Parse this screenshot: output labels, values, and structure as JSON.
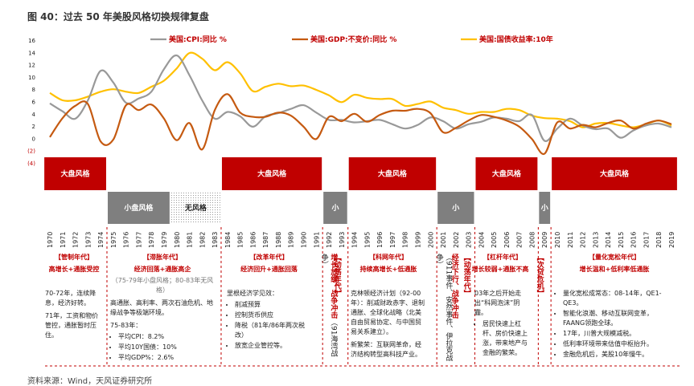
{
  "title": "图 40：过去 50 年美股风格切换规律复盘",
  "source": "资料来源：Wind，天风证券研究所",
  "colors": {
    "cpi": "#999999",
    "gdp": "#c55a11",
    "yield": "#ffc000",
    "red": "#c00000",
    "gray": "#7f7f7f"
  },
  "chart_data": {
    "type": "line",
    "title": "图 40：过去 50 年美股风格切换规律复盘",
    "x": [
      1970,
      1971,
      1972,
      1973,
      1974,
      1975,
      1976,
      1977,
      1978,
      1979,
      1980,
      1981,
      1982,
      1983,
      1984,
      1985,
      1986,
      1987,
      1988,
      1989,
      1990,
      1991,
      1992,
      1993,
      1994,
      1995,
      1996,
      1997,
      1998,
      1999,
      2000,
      2001,
      2002,
      2003,
      2004,
      2005,
      2006,
      2007,
      2008,
      2009,
      2010,
      2011,
      2012,
      2013,
      2014,
      2015,
      2016,
      2017,
      2018,
      2019
    ],
    "ylim": [
      -4,
      16
    ],
    "yticks": [
      "16",
      "14",
      "12",
      "10",
      "8",
      "6",
      "4",
      "2",
      "0",
      "(2)",
      "(4)"
    ],
    "legend": [
      "美国:CPI:同比 %",
      "美国:GDP:不变价:同比 %",
      "美国:国债收益率:10年"
    ],
    "series": [
      {
        "name": "美国:CPI:同比 %",
        "values": [
          5.7,
          4.4,
          3.2,
          6.2,
          11.0,
          9.1,
          5.8,
          6.5,
          7.6,
          11.3,
          13.5,
          10.3,
          6.2,
          3.2,
          4.3,
          3.6,
          1.9,
          3.6,
          4.1,
          4.8,
          5.4,
          4.2,
          3.0,
          3.0,
          2.6,
          2.8,
          3.0,
          2.3,
          1.6,
          2.2,
          3.4,
          2.8,
          1.6,
          2.3,
          2.7,
          3.4,
          3.2,
          2.8,
          3.8,
          -0.4,
          1.6,
          3.2,
          2.1,
          1.5,
          1.6,
          0.1,
          1.3,
          2.1,
          2.4,
          1.8
        ]
      },
      {
        "name": "美国:GDP:不变价:同比 %",
        "values": [
          0.2,
          3.3,
          5.3,
          5.6,
          -0.5,
          -0.2,
          5.4,
          4.6,
          5.5,
          3.2,
          -0.3,
          2.5,
          -1.8,
          4.6,
          7.2,
          4.2,
          3.5,
          3.5,
          4.2,
          3.7,
          1.9,
          -0.1,
          3.5,
          2.8,
          4.0,
          2.7,
          3.8,
          4.5,
          4.5,
          4.8,
          4.1,
          1.0,
          1.7,
          2.9,
          3.8,
          3.5,
          2.9,
          1.9,
          -0.1,
          -2.5,
          2.6,
          1.6,
          2.2,
          1.8,
          2.5,
          2.9,
          1.6,
          2.4,
          2.9,
          2.3
        ]
      },
      {
        "name": "美国:国债收益率:10年",
        "values": [
          7.4,
          6.2,
          6.2,
          6.8,
          7.6,
          8.0,
          7.6,
          7.4,
          8.4,
          9.4,
          11.4,
          13.9,
          13.0,
          11.1,
          12.4,
          10.6,
          7.7,
          8.4,
          8.9,
          8.5,
          8.6,
          7.9,
          7.0,
          5.9,
          7.1,
          6.6,
          6.4,
          6.4,
          5.3,
          5.6,
          6.0,
          5.0,
          4.6,
          4.0,
          4.3,
          4.3,
          4.8,
          4.6,
          3.7,
          3.3,
          3.2,
          2.8,
          1.8,
          2.4,
          2.5,
          2.1,
          1.8,
          2.3,
          2.9,
          2.1
        ]
      }
    ],
    "bands": [
      {
        "label": "大盘风格",
        "from": 1970,
        "to": 1974,
        "kind": "big"
      },
      {
        "label": "小盘风格",
        "from": 1975,
        "to": 1979,
        "kind": "small"
      },
      {
        "label": "无风格",
        "from": 1980,
        "to": 1983,
        "kind": "none"
      },
      {
        "label": "大盘风格",
        "from": 1984,
        "to": 1991,
        "kind": "big"
      },
      {
        "label": "小",
        "from": 1992,
        "to": 1993,
        "kind": "small"
      },
      {
        "label": "大盘风格",
        "from": 1994,
        "to": 2000,
        "kind": "big"
      },
      {
        "label": "小",
        "from": 2001,
        "to": 2003,
        "kind": "small"
      },
      {
        "label": "大盘风格",
        "from": 2004,
        "to": 2008,
        "kind": "big"
      },
      {
        "label": "小",
        "from": 2009,
        "to": 2009,
        "kind": "small"
      },
      {
        "label": "大盘风格",
        "from": 2010,
        "to": 2019,
        "kind": "big"
      }
    ]
  },
  "columns": {
    "c1": {
      "title": "【管制年代】",
      "sub": "高增长+通胀受控",
      "p1": "70-72年，连续降息，经济好转。",
      "p2": "71年，工资和物价管控，通胀暂时压住。"
    },
    "c2": {
      "title": "【滞胀年代】",
      "sub": "经济回落+通胀高企",
      "note": "（75-79年小盘风格；80-83年无风格）",
      "p1": "高通胀、高利率、两次石油危机、地缘战争等极端环境。",
      "p2": "75-83年：",
      "li1": "平均CPI：8.2%",
      "li2": "平均10Y国债：10%",
      "li3": "平均GDP%：2.6%"
    },
    "c3": {
      "title": "【改革年代】",
      "sub": "经济回升+通胀回落",
      "p1": "里根经济学见效：",
      "li1": "削减预算",
      "li2": "控制货币供应",
      "li3": "降税（81年/86年两次税改）",
      "li4": "放宽企业管控等。"
    },
    "c4": {
      "red": "增长放缓、战争冲击",
      "black": "（91海湾战争）"
    },
    "c5": {
      "red": "【动荡年代】"
    },
    "c6": {
      "title": "【科网年代】",
      "sub": "持续高增长+低通胀",
      "p1": "克林顿经济计划（92-00年）：削减财政赤字、退制通胀、全球化战略（北美自由贸易协定、与中国贸易关系建立）。",
      "p2": "新繁荣：互联网革命，经济结构转型高科技产业。"
    },
    "c7": {
      "black": "（911事件、安然事件、伊拉克战争）"
    },
    "c8": {
      "red": "经济下行、战争冲击"
    },
    "c9": {
      "red": "【动荡年代】"
    },
    "c10": {
      "title": "【杠杆年代】",
      "sub": "增长较弱+通胀不高",
      "p1": "03年之后开始走出“科网泡沫”阴霾。",
      "li1": "居民快速上杠杆、房价快速上涨，带来地产与金融的繁荣。"
    },
    "c11": {
      "red": "【次贷危机】"
    },
    "c12": {
      "title": "【量化宽松年代】",
      "sub": "增长温和+低利率低通胀",
      "li1": "量化宽松成常态：08-14年，QE1-QE3。",
      "li2": "智能化浪潮、移动互联网变革，FAANG领跑全球。",
      "li3": "17年，川普大规模减税。",
      "li4": "低利率环境带来估值中枢抬升。",
      "li5": "金融危机后，美股10年慢牛。"
    }
  }
}
